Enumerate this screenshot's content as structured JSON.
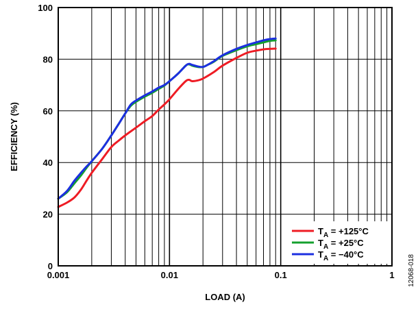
{
  "figure_id": "12068-018",
  "chart_data": {
    "type": "line",
    "xlabel": "LOAD (A)",
    "ylabel": "EFFICIENCY (%)",
    "x_scale": "log",
    "xlim": [
      0.001,
      1
    ],
    "ylim": [
      0,
      100
    ],
    "x_ticks": [
      {
        "value": 0.001,
        "label": "0.001"
      },
      {
        "value": 0.01,
        "label": "0.01"
      },
      {
        "value": 0.1,
        "label": "0.1"
      },
      {
        "value": 1,
        "label": "1"
      }
    ],
    "y_ticks": [
      {
        "value": 0,
        "label": "0"
      },
      {
        "value": 20,
        "label": "20"
      },
      {
        "value": 40,
        "label": "40"
      },
      {
        "value": 60,
        "label": "60"
      },
      {
        "value": 80,
        "label": "80"
      },
      {
        "value": 100,
        "label": "100"
      }
    ],
    "grid": true,
    "legend_position": "bottom-right",
    "series": [
      {
        "legend_main": "T",
        "legend_sub": "A",
        "legend_rest": " = +125°C",
        "color": "#ee1c24",
        "x": [
          0.001,
          0.0012,
          0.0014,
          0.0016,
          0.0018,
          0.002,
          0.0025,
          0.003,
          0.0035,
          0.004,
          0.005,
          0.006,
          0.007,
          0.008,
          0.009,
          0.01,
          0.012,
          0.014,
          0.015,
          0.016,
          0.018,
          0.02,
          0.025,
          0.03,
          0.04,
          0.05,
          0.06,
          0.07,
          0.08,
          0.09
        ],
        "y": [
          22.8,
          24.5,
          26.5,
          29.5,
          33,
          36,
          41.5,
          46,
          48.5,
          50.5,
          53.5,
          56,
          58,
          60.5,
          62.5,
          64.5,
          68.5,
          71.5,
          72,
          71.5,
          71.8,
          72.5,
          75,
          77.5,
          80.5,
          82.5,
          83.3,
          83.8,
          84,
          84.1
        ]
      },
      {
        "legend_main": "T",
        "legend_sub": "A",
        "legend_rest": " = +25°C",
        "color": "#14a02e",
        "x": [
          0.001,
          0.0012,
          0.0014,
          0.0016,
          0.0018,
          0.002,
          0.0025,
          0.003,
          0.0035,
          0.004,
          0.0045,
          0.005,
          0.006,
          0.007,
          0.008,
          0.009,
          0.01,
          0.012,
          0.014,
          0.015,
          0.016,
          0.018,
          0.02,
          0.022,
          0.025,
          0.03,
          0.04,
          0.05,
          0.06,
          0.07,
          0.08,
          0.09
        ],
        "y": [
          26,
          28.5,
          32,
          35,
          38,
          40.5,
          45.5,
          50.5,
          55,
          59,
          62,
          63.5,
          65.5,
          67,
          68.5,
          69.8,
          71.5,
          74.5,
          77.5,
          78,
          77.5,
          77,
          77,
          77.8,
          79,
          81.3,
          83.5,
          85,
          85.8,
          86.5,
          87.1,
          87.3
        ]
      },
      {
        "legend_main": "T",
        "legend_sub": "A",
        "legend_rest": " = −40°C",
        "color": "#1c2fe0",
        "x": [
          0.001,
          0.0012,
          0.0014,
          0.0016,
          0.0018,
          0.002,
          0.0025,
          0.003,
          0.0035,
          0.004,
          0.0045,
          0.005,
          0.006,
          0.007,
          0.008,
          0.009,
          0.01,
          0.012,
          0.014,
          0.015,
          0.016,
          0.018,
          0.02,
          0.022,
          0.025,
          0.03,
          0.04,
          0.05,
          0.06,
          0.07,
          0.08,
          0.09
        ],
        "y": [
          26,
          29,
          33,
          36,
          38.5,
          40.5,
          45.5,
          50.5,
          55,
          59,
          62.5,
          64,
          66,
          67.5,
          69,
          70,
          71.5,
          74.5,
          77.5,
          78.2,
          77.8,
          77.2,
          77,
          77.8,
          79.2,
          81.5,
          84,
          85.5,
          86.5,
          87.3,
          87.8,
          88
        ]
      }
    ]
  }
}
